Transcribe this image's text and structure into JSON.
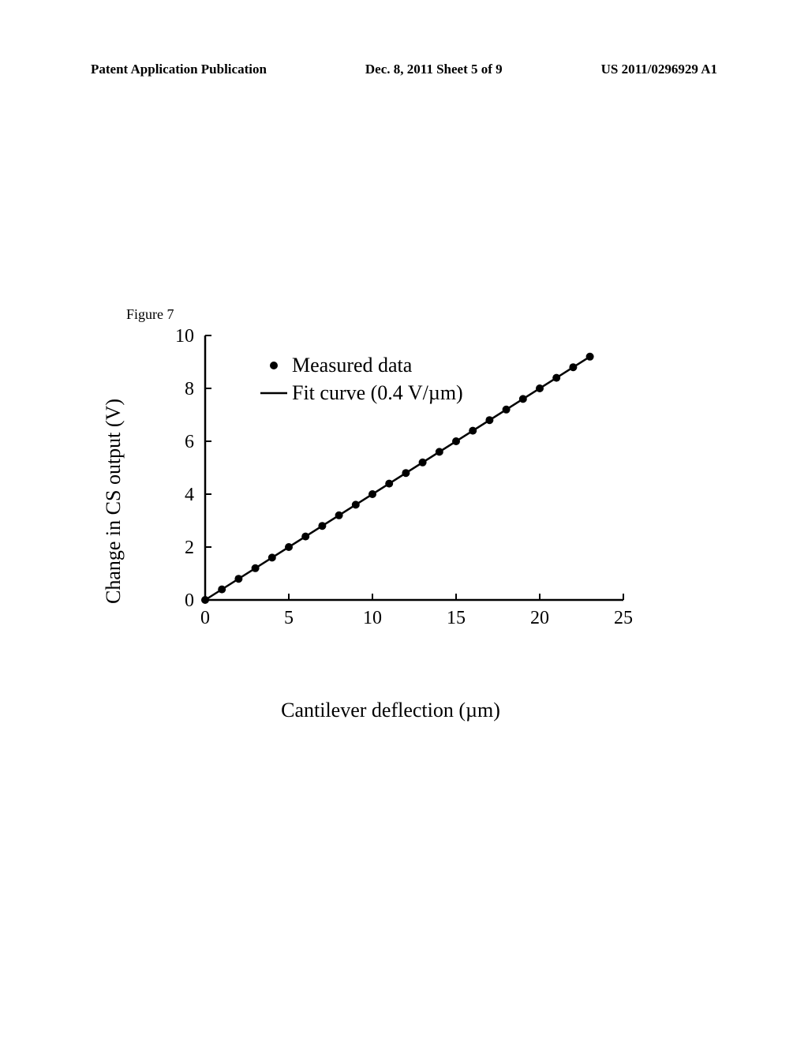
{
  "header": {
    "left": "Patent Application Publication",
    "center": "Dec. 8, 2011  Sheet 5 of 9",
    "right": "US 2011/0296929 A1"
  },
  "figure_label": "Figure 7",
  "chart": {
    "type": "scatter-line",
    "xlabel": "Cantilever deflection (µm)",
    "ylabel": "Change in CS output (V)",
    "xlim": [
      0,
      25
    ],
    "ylim": [
      0,
      10
    ],
    "xticks": [
      0,
      5,
      10,
      15,
      20,
      25
    ],
    "yticks": [
      0,
      2,
      4,
      6,
      8,
      10
    ],
    "label_fontsize": 26,
    "tick_fontsize": 24,
    "axis_color": "#000000",
    "line_color": "#000000",
    "marker_color": "#000000",
    "line_width": 2.5,
    "marker_size": 5,
    "background_color": "#ffffff",
    "data_x": [
      0,
      1,
      2,
      3,
      4,
      5,
      6,
      7,
      8,
      9,
      10,
      11,
      12,
      13,
      14,
      15,
      16,
      17,
      18,
      19,
      20,
      21,
      22,
      23
    ],
    "data_y": [
      0.0,
      0.4,
      0.8,
      1.2,
      1.6,
      2.0,
      2.4,
      2.8,
      3.2,
      3.6,
      4.0,
      4.4,
      4.8,
      5.2,
      5.6,
      6.0,
      6.4,
      6.8,
      7.2,
      7.6,
      8.0,
      8.4,
      8.8,
      9.2
    ],
    "fit_slope": 0.4,
    "fit_x0": 0,
    "fit_x1": 23,
    "legend": {
      "dot_label": "Measured data",
      "line_label": "Fit curve (0.4 V/µm)"
    }
  }
}
